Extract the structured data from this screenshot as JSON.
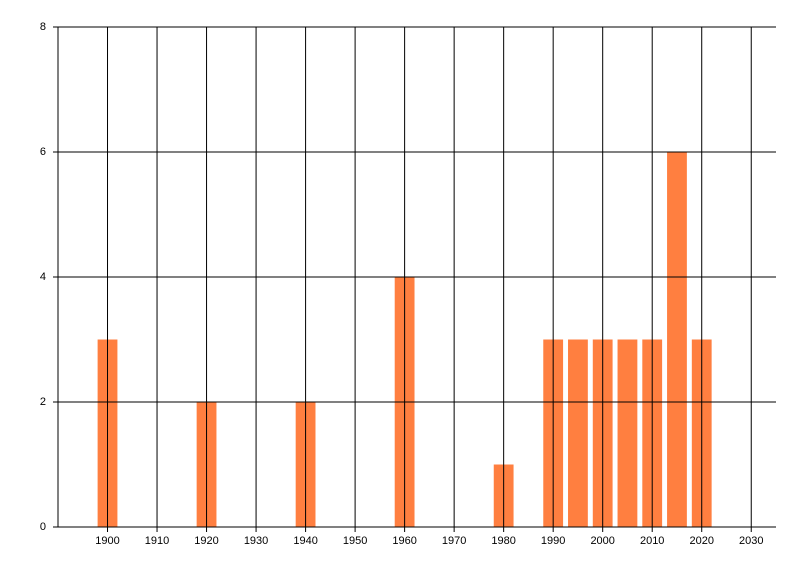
{
  "chart_data": {
    "type": "bar",
    "x": [
      1900,
      1920,
      1940,
      1960,
      1980,
      1990,
      1995,
      2000,
      2005,
      2010,
      2015,
      2020
    ],
    "values": [
      3,
      2,
      2,
      4,
      1,
      3,
      3,
      3,
      3,
      3,
      6,
      3
    ],
    "color": "#ff7f40",
    "xlim": [
      1890,
      2035
    ],
    "xticks": [
      1900,
      1910,
      1920,
      1930,
      1940,
      1950,
      1960,
      1970,
      1980,
      1990,
      2000,
      2010,
      2020,
      2030
    ],
    "ylim": [
      0,
      8
    ],
    "yticks": [
      0,
      2,
      4,
      6,
      8
    ],
    "grid": true
  }
}
